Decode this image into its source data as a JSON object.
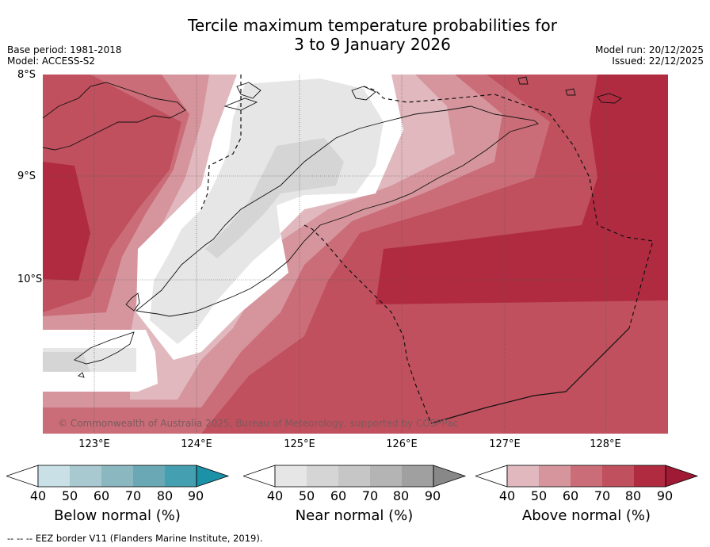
{
  "title": {
    "line1": "Tercile maximum temperature probabilities for",
    "line2": "3 to 9 January 2026"
  },
  "meta": {
    "base_period": "Base period: 1981-2018",
    "model": "Model: ACCESS-S2",
    "model_run": "Model run: 20/12/2025",
    "issued": "Issued: 22/12/2025"
  },
  "map": {
    "latitudes": [
      "8°S",
      "9°S",
      "10°S"
    ],
    "longitudes": [
      "123°E",
      "124°E",
      "125°E",
      "126°E",
      "127°E",
      "128°E"
    ],
    "copyright": "© Commonwealth of Australia 2025, Bureau of Meteorology, supported by COSPPac"
  },
  "colorbars": [
    {
      "title": "Below normal (%)",
      "ticks": [
        "40",
        "50",
        "60",
        "70",
        "80",
        "90"
      ],
      "colors": [
        "#ffffff",
        "#c9e0e6",
        "#a8c9cf",
        "#8bb8c0",
        "#69a8b4",
        "#44a0b0",
        "#1c92a8"
      ]
    },
    {
      "title": "Near normal (%)",
      "ticks": [
        "40",
        "50",
        "60",
        "70",
        "80",
        "90"
      ],
      "colors": [
        "#ffffff",
        "#e6e6e6",
        "#d5d5d5",
        "#c6c6c6",
        "#b4b4b4",
        "#a0a0a0",
        "#888888"
      ]
    },
    {
      "title": "Above normal (%)",
      "ticks": [
        "40",
        "50",
        "60",
        "70",
        "80",
        "90"
      ],
      "colors": [
        "#ffffff",
        "#e0b8be",
        "#d6959d",
        "#cb6d78",
        "#c0505d",
        "#b02b40",
        "#a01a35"
      ]
    }
  ],
  "footer": "--  --  -- EEZ border V11 (Flanders Marine Institute, 2019)."
}
